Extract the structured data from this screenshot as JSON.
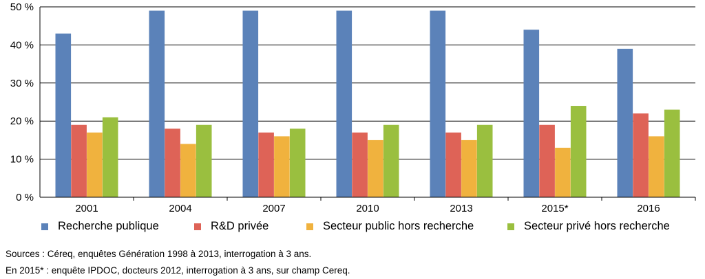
{
  "chart_data": {
    "type": "bar",
    "categories": [
      "2001",
      "2004",
      "2007",
      "2010",
      "2013",
      "2015*",
      "2016"
    ],
    "series": [
      {
        "name": "Recherche publique",
        "color": "#5b82b9",
        "values": [
          43,
          49,
          49,
          49,
          49,
          44,
          39
        ]
      },
      {
        "name": "R&D privée",
        "color": "#de6357",
        "values": [
          19,
          18,
          17,
          17,
          17,
          19,
          22
        ]
      },
      {
        "name": "Secteur public hors recherche",
        "color": "#f0b23e",
        "values": [
          17,
          14,
          16,
          15,
          15,
          13,
          16
        ]
      },
      {
        "name": "Secteur privé hors recherche",
        "color": "#9abf3f",
        "values": [
          21,
          19,
          18,
          19,
          19,
          24,
          23
        ]
      }
    ],
    "title": "",
    "xlabel": "",
    "ylabel": "",
    "ylim": [
      0,
      50
    ],
    "yticks": [
      0,
      10,
      20,
      30,
      40,
      50
    ],
    "ytick_labels": [
      "0 %",
      "10 %",
      "20 %",
      "30 %",
      "40 %",
      "50 %"
    ],
    "legend_position": "bottom"
  },
  "notes": {
    "sources": "Sources : Céreq, enquêtes Génération 1998 à 2013, interrogation à 3 ans.",
    "footnote": "En 2015* : enquête IPDOC, docteurs 2012, interrogation à 3 ans, sur champ Cereq."
  }
}
